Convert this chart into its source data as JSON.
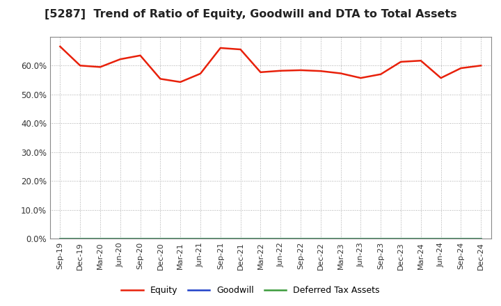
{
  "title": "[5287]  Trend of Ratio of Equity, Goodwill and DTA to Total Assets",
  "x_labels": [
    "Sep-19",
    "Dec-19",
    "Mar-20",
    "Jun-20",
    "Sep-20",
    "Dec-20",
    "Mar-21",
    "Jun-21",
    "Sep-21",
    "Dec-21",
    "Mar-22",
    "Jun-22",
    "Sep-22",
    "Dec-22",
    "Mar-23",
    "Jun-23",
    "Sep-23",
    "Dec-23",
    "Mar-24",
    "Jun-24",
    "Sep-24",
    "Dec-24"
  ],
  "equity": [
    0.666,
    0.6,
    0.595,
    0.622,
    0.635,
    0.554,
    0.543,
    0.572,
    0.661,
    0.656,
    0.577,
    0.582,
    0.584,
    0.581,
    0.573,
    0.557,
    0.57,
    0.613,
    0.617,
    0.557,
    0.591,
    0.6
  ],
  "goodwill": [
    0.0,
    0.0,
    0.0,
    0.0,
    0.0,
    0.0,
    0.0,
    0.0,
    0.0,
    0.0,
    0.0,
    0.0,
    0.0,
    0.0,
    0.0,
    0.0,
    0.0,
    0.0,
    0.0,
    0.0,
    0.0,
    0.0
  ],
  "dta": [
    0.0,
    0.0,
    0.0,
    0.0,
    0.0,
    0.0,
    0.0,
    0.0,
    0.0,
    0.0,
    0.0,
    0.0,
    0.0,
    0.0,
    0.0,
    0.0,
    0.0,
    0.0,
    0.0,
    0.0,
    0.0,
    0.0
  ],
  "equity_color": "#e8200a",
  "goodwill_color": "#1e40c8",
  "dta_color": "#3a9a3a",
  "ylim": [
    0.0,
    0.7
  ],
  "yticks": [
    0.0,
    0.1,
    0.2,
    0.3,
    0.4,
    0.5,
    0.6
  ],
  "background_color": "#ffffff",
  "plot_bg_color": "#ffffff",
  "grid_color": "#aaaaaa",
  "title_fontsize": 11.5,
  "legend_labels": [
    "Equity",
    "Goodwill",
    "Deferred Tax Assets"
  ]
}
